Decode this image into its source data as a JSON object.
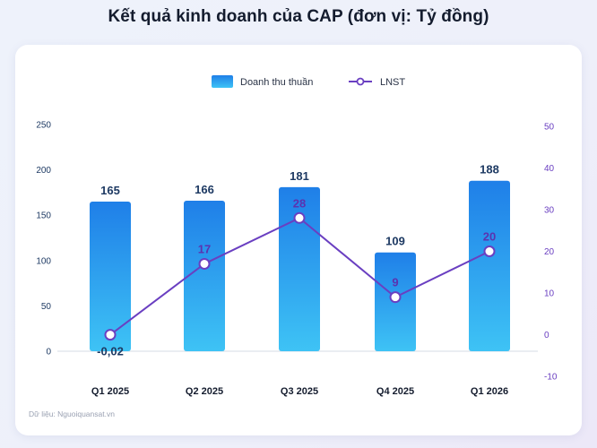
{
  "title": "Kết quả kinh doanh của CAP (đơn vị: Tỷ đồng)",
  "source": "Dữ liệu: Nguoiquansat.vn",
  "colors": {
    "bar_top": "#1f7fe8",
    "bar_bottom": "#3ec3f5",
    "line": "#6a3fc1",
    "left_axis_text": "#1e3a63",
    "right_axis_text": "#6a3fc1",
    "bar_label": "#1e3a63",
    "line_label": "#5b32b0",
    "negative_label": "#1e3a63"
  },
  "chart_data": {
    "type": "bar",
    "categories": [
      "Q1 2025",
      "Q2 2025",
      "Q3 2025",
      "Q4 2025",
      "Q1 2026"
    ],
    "series": [
      {
        "name": "Doanh thu thuần",
        "type": "bar",
        "axis": "left",
        "values": [
          165,
          166,
          181,
          109,
          188
        ],
        "labels": [
          "165",
          "166",
          "181",
          "109",
          "188"
        ]
      },
      {
        "name": "LNST",
        "type": "line",
        "axis": "right",
        "values": [
          -0.02,
          17,
          28,
          9,
          20
        ],
        "labels": [
          "-0,02",
          "17",
          "28",
          "9",
          "20"
        ]
      }
    ],
    "left_axis": {
      "min": 0,
      "max": 250,
      "ticks": [
        0,
        50,
        100,
        150,
        200,
        250
      ]
    },
    "right_axis": {
      "min": -10,
      "max": 50,
      "ticks": [
        -10,
        0,
        10,
        20,
        30,
        40,
        50
      ]
    },
    "legend_position": "top-center",
    "grid": false
  }
}
